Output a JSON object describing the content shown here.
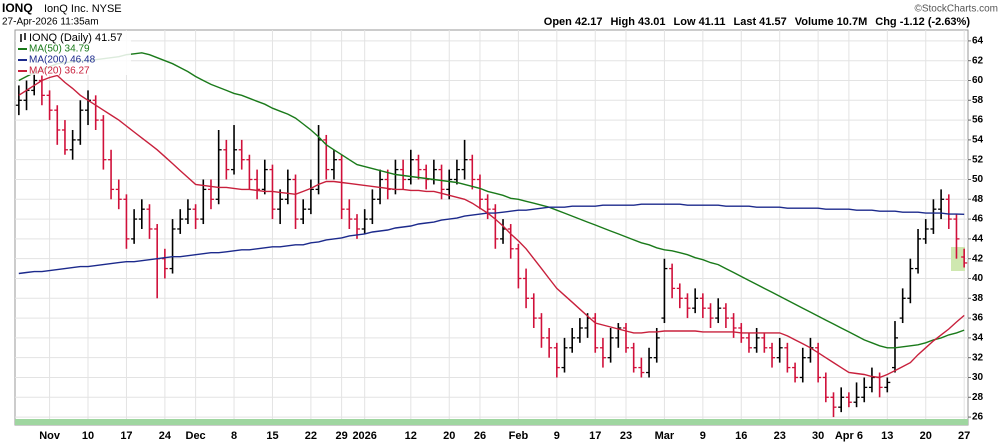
{
  "chart_data": {
    "type": "ohlc",
    "title": "IONQ",
    "subtitle": "IonQ Inc. NYSE",
    "date": "27-Apr-2026 11:35am",
    "quote": [
      "Open 42.17",
      "High 43.01",
      "Low 41.11",
      "Last 41.57",
      "Volume 10.7M",
      "Chg -1.12 (-2.63%)"
    ],
    "credit": "©StockCharts.com",
    "categories": [
      null,
      null,
      null,
      null,
      "Nov",
      null,
      null,
      null,
      null,
      "10",
      null,
      null,
      null,
      null,
      "17",
      null,
      null,
      null,
      null,
      "24",
      null,
      null,
      null,
      "Dec",
      null,
      null,
      null,
      null,
      "8",
      null,
      null,
      null,
      null,
      "15",
      null,
      null,
      null,
      null,
      "22",
      null,
      null,
      null,
      "29",
      null,
      null,
      "2026",
      null,
      null,
      null,
      null,
      null,
      "12",
      null,
      null,
      null,
      null,
      "20",
      null,
      null,
      null,
      "26",
      null,
      null,
      null,
      null,
      "Feb",
      null,
      null,
      null,
      null,
      "9",
      null,
      null,
      null,
      null,
      "17",
      null,
      null,
      null,
      "23",
      null,
      null,
      null,
      null,
      "Mar",
      null,
      null,
      null,
      null,
      "9",
      null,
      null,
      null,
      null,
      "16",
      null,
      null,
      null,
      null,
      "23",
      null,
      null,
      null,
      null,
      "30",
      null,
      null,
      null,
      "Apr 6",
      null,
      null,
      null,
      null,
      "13",
      null,
      null,
      null,
      null,
      "20",
      null,
      null,
      null,
      null,
      "27"
    ],
    "series": {
      "name": "IONQ (Daily) 41.57",
      "up_color": "#000000",
      "down_color": "#d0103a",
      "open": [
        57.5,
        58,
        59,
        60,
        58.5,
        57,
        55,
        53,
        54,
        57,
        58,
        56,
        52,
        49,
        48,
        44,
        46,
        47,
        45,
        42,
        41,
        45,
        46,
        47,
        46,
        49,
        48,
        53,
        51,
        53,
        52,
        50,
        49,
        51,
        47,
        48,
        50,
        46,
        47,
        49,
        54,
        51,
        52,
        47,
        46,
        45,
        46,
        48,
        50,
        49,
        51,
        50,
        52,
        51,
        50,
        51,
        49,
        50,
        51,
        52,
        50,
        48,
        47,
        44,
        45,
        43,
        40,
        38,
        36,
        34,
        33,
        31,
        33,
        34,
        35,
        36,
        33,
        32,
        34,
        35,
        33,
        31,
        30.5,
        32,
        36,
        41,
        39,
        38,
        37,
        38,
        37,
        36,
        37,
        36,
        35,
        34,
        33,
        34,
        33,
        32,
        33,
        31,
        30,
        32,
        33,
        30,
        28,
        27,
        28,
        27.5,
        28,
        29,
        30,
        29,
        31,
        36,
        38,
        41,
        44,
        45,
        47,
        48,
        46,
        42.17
      ],
      "high": [
        59.5,
        60,
        61,
        60.5,
        59,
        57.5,
        56,
        55,
        58,
        59,
        58.5,
        56.5,
        53,
        50,
        48.5,
        47,
        48,
        47.5,
        45.5,
        43,
        46,
        47,
        48,
        47.5,
        50,
        50,
        55,
        54,
        55.5,
        54,
        52.5,
        51,
        52,
        51.5,
        49,
        51,
        50.5,
        48,
        50,
        55.5,
        54.5,
        53,
        52.5,
        48,
        46.5,
        47,
        49,
        51,
        51,
        52,
        52,
        53,
        52.5,
        51.5,
        52,
        51.5,
        51,
        52,
        54,
        52.5,
        50.5,
        48.5,
        47.5,
        46,
        45.5,
        43.5,
        41,
        38.5,
        36.5,
        35,
        33.5,
        34,
        35,
        36,
        36.5,
        36.5,
        34,
        35,
        35.5,
        35.5,
        33.5,
        32,
        33,
        35,
        42,
        41.5,
        39.5,
        38.5,
        39,
        38.5,
        37.5,
        38,
        37.5,
        36.5,
        35.5,
        34.5,
        35,
        34.5,
        33.5,
        34,
        33.5,
        31.5,
        33,
        34,
        33.5,
        30.5,
        28.5,
        29,
        28.5,
        29.5,
        30,
        31,
        30.5,
        30,
        35.7,
        39,
        42,
        45,
        46,
        48,
        49,
        48.5,
        46.5,
        43.01
      ],
      "low": [
        56.5,
        57,
        58.5,
        57.5,
        56,
        53.5,
        52.5,
        52,
        53.5,
        55.5,
        55,
        51,
        48,
        47,
        43,
        43.5,
        45,
        44,
        38,
        40,
        40.5,
        44.5,
        45.5,
        45,
        45.5,
        47,
        47.5,
        50,
        50.5,
        51,
        49,
        48,
        48.5,
        46,
        45.5,
        47.5,
        45,
        45.5,
        46.5,
        48.5,
        50,
        50,
        46,
        45,
        44,
        44.5,
        45.5,
        47.5,
        48,
        48.5,
        49,
        49.5,
        50,
        49,
        49.5,
        48,
        48,
        49.5,
        50,
        49,
        47,
        46,
        43,
        43.5,
        42,
        39,
        37,
        35,
        33,
        32,
        30,
        30.5,
        32.5,
        33.5,
        34,
        32.5,
        31,
        31.5,
        33,
        32.5,
        30.5,
        30,
        30,
        31.5,
        35.5,
        38,
        37,
        36,
        36.5,
        36,
        35,
        35.5,
        35,
        34,
        33.5,
        32.5,
        32.5,
        32.5,
        31,
        31.5,
        30.5,
        29.5,
        29.5,
        31.5,
        29.5,
        27.5,
        26,
        26.5,
        27,
        27,
        27.5,
        28.5,
        28,
        28.5,
        30.5,
        35.5,
        37.5,
        40.5,
        43.5,
        44.5,
        46,
        45,
        42,
        41.11
      ],
      "close": [
        58,
        59,
        60,
        58.5,
        57,
        55,
        53,
        54,
        57,
        58,
        56,
        52,
        49,
        48,
        44,
        46,
        47,
        45,
        42,
        41,
        45,
        46,
        47,
        46,
        49,
        48,
        53,
        51,
        53,
        52,
        50,
        49,
        51,
        47,
        48,
        50,
        46,
        47,
        49,
        54,
        51,
        52,
        47,
        46,
        45,
        46,
        48,
        50,
        49,
        51,
        50,
        52,
        51,
        50,
        51,
        49,
        50,
        51,
        52,
        50,
        48,
        47,
        44,
        45,
        43,
        40,
        38,
        36,
        34,
        33,
        31,
        33,
        34,
        35,
        36,
        33,
        32,
        34,
        35,
        33,
        31,
        30.5,
        32,
        34,
        41,
        39,
        38,
        37,
        38,
        37,
        36,
        37,
        36,
        35,
        34,
        33,
        34,
        33,
        32,
        33,
        31,
        30,
        32,
        33,
        30,
        28,
        27,
        28,
        27.5,
        28,
        29,
        30,
        29,
        29.5,
        34,
        38,
        41,
        44,
        45,
        47,
        48,
        46,
        44,
        41.57
      ]
    },
    "lines": [
      {
        "name": "MA(50) 34.79",
        "color": "#1a7a1a",
        "values": [
          60,
          60.4,
          60.8,
          61.1,
          61.4,
          61.7,
          61.8,
          61.9,
          62,
          62,
          62.1,
          62.2,
          62.3,
          62.4,
          62.6,
          62.7,
          62.8,
          62.6,
          62.3,
          62,
          61.7,
          61.3,
          60.9,
          60.4,
          60,
          59.6,
          59.3,
          59,
          58.7,
          58.5,
          58.2,
          57.9,
          57.6,
          57.2,
          56.9,
          56.6,
          56.2,
          55.6,
          55,
          54.3,
          53.5,
          53,
          52.5,
          52,
          51.5,
          51.3,
          51.1,
          50.9,
          50.7,
          50.5,
          50.4,
          50.3,
          50.2,
          50.1,
          50,
          49.9,
          49.8,
          49.7,
          49.5,
          49.3,
          49.1,
          48.8,
          48.6,
          48.4,
          48.1,
          48,
          47.8,
          47.6,
          47.4,
          47.2,
          46.9,
          46.6,
          46.3,
          46,
          45.7,
          45.4,
          45.1,
          44.8,
          44.5,
          44.2,
          43.9,
          43.6,
          43.4,
          43.1,
          42.9,
          42.8,
          42.6,
          42.4,
          42.1,
          41.9,
          41.6,
          41.4,
          41,
          40.6,
          40.2,
          39.8,
          39.4,
          39,
          38.6,
          38.2,
          37.8,
          37.4,
          37,
          36.6,
          36.2,
          35.8,
          35.4,
          35,
          34.6,
          34.2,
          33.8,
          33.5,
          33.2,
          33,
          33,
          33.1,
          33.2,
          33.3,
          33.5,
          33.8,
          34,
          34.3,
          34.5,
          34.79
        ]
      },
      {
        "name": "MA(200) 46.48",
        "color": "#1c2a8c",
        "values": [
          40.5,
          40.6,
          40.7,
          40.7,
          40.8,
          40.9,
          41,
          41.1,
          41.2,
          41.2,
          41.3,
          41.4,
          41.5,
          41.6,
          41.7,
          41.7,
          41.8,
          41.9,
          42,
          42.1,
          42.2,
          42.2,
          42.3,
          42.4,
          42.5,
          42.6,
          42.6,
          42.7,
          42.8,
          42.9,
          42.9,
          43,
          43.1,
          43.2,
          43.2,
          43.3,
          43.4,
          43.4,
          43.6,
          43.7,
          43.9,
          44,
          44.1,
          44.3,
          44.4,
          44.5,
          44.7,
          44.8,
          44.9,
          45.1,
          45.2,
          45.3,
          45.5,
          45.6,
          45.7,
          45.9,
          46,
          46.1,
          46.3,
          46.4,
          46.5,
          46.6,
          46.6,
          46.7,
          46.8,
          46.9,
          46.9,
          47,
          47.1,
          47.2,
          47.2,
          47.2,
          47.3,
          47.3,
          47.3,
          47.3,
          47.4,
          47.4,
          47.4,
          47.4,
          47.4,
          47.5,
          47.5,
          47.5,
          47.5,
          47.5,
          47.5,
          47.4,
          47.4,
          47.4,
          47.4,
          47.4,
          47.3,
          47.3,
          47.3,
          47.3,
          47.2,
          47.2,
          47.2,
          47.2,
          47.1,
          47.1,
          47.1,
          47.1,
          47.1,
          47,
          47,
          47,
          47,
          46.9,
          46.9,
          46.9,
          46.8,
          46.8,
          46.8,
          46.7,
          46.7,
          46.7,
          46.6,
          46.6,
          46.6,
          46.5,
          46.5,
          46.48
        ]
      },
      {
        "name": "MA(20) 36.27",
        "color": "#c8203c",
        "values": [
          58.5,
          59,
          59.5,
          60,
          60.3,
          60.5,
          59.8,
          59.2,
          58.5,
          58,
          57.5,
          57,
          56.5,
          56,
          55.4,
          54.8,
          54.2,
          53.6,
          53,
          52.3,
          51.6,
          50.9,
          50.2,
          49.5,
          49.4,
          49.3,
          49.2,
          49.2,
          49.1,
          49,
          49,
          48.9,
          48.8,
          48.8,
          48.7,
          48.6,
          48.5,
          48.8,
          49.1,
          49.5,
          49.8,
          49.8,
          49.7,
          49.6,
          49.5,
          49.4,
          49.3,
          49.2,
          49.1,
          49,
          49,
          48.9,
          48.9,
          48.8,
          48.8,
          48.6,
          48.4,
          48.2,
          48,
          47.6,
          47.1,
          46.6,
          46,
          45.3,
          44.5,
          43.8,
          43,
          42,
          41,
          40,
          39,
          38.3,
          37.6,
          36.9,
          36.2,
          35.5,
          35.3,
          35.1,
          34.9,
          34.7,
          34.5,
          34.5,
          34.6,
          34.6,
          34.7,
          34.7,
          34.7,
          34.7,
          34.7,
          34.6,
          34.6,
          34.6,
          34.6,
          34.6,
          34.5,
          34.5,
          34.5,
          34.5,
          34.5,
          34.5,
          34.2,
          33.8,
          33.4,
          33,
          32.5,
          32,
          31.5,
          31,
          30.5,
          30.4,
          30.3,
          30.1,
          30,
          30.3,
          30.7,
          31.1,
          31.5,
          32.3,
          33,
          33.7,
          34.3,
          34.9,
          35.6,
          36.27
        ]
      }
    ],
    "ylim": [
      25.2,
      65.1
    ],
    "yticks": [
      26,
      28,
      30,
      32,
      34,
      36,
      38,
      40,
      42,
      44,
      46,
      48,
      50,
      52,
      54,
      56,
      58,
      60,
      62,
      64
    ],
    "grid": true
  }
}
